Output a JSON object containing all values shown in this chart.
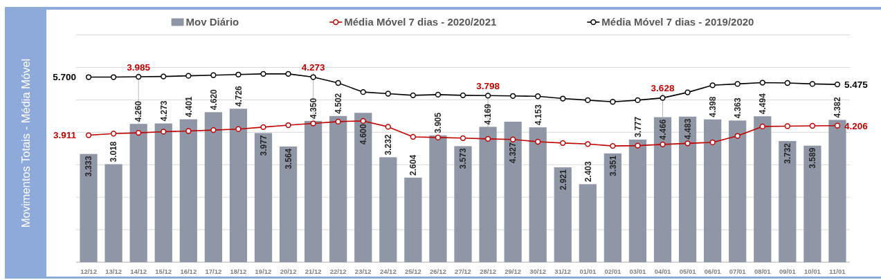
{
  "chart_data": {
    "type": "bar",
    "ylabel": "Movimentos Totais - Média Móvel",
    "categories": [
      "12/12",
      "13/12",
      "14/12",
      "15/12",
      "16/12",
      "17/12",
      "18/12",
      "19/12",
      "20/12",
      "21/12",
      "22/12",
      "23/12",
      "24/12",
      "25/12",
      "26/12",
      "27/12",
      "28/12",
      "29/12",
      "30/12",
      "31/12",
      "01/01",
      "02/01",
      "03/01",
      "04/01",
      "05/01",
      "06/01",
      "07/01",
      "08/01",
      "09/01",
      "10/01",
      "11/01"
    ],
    "series": [
      {
        "name": "Mov Diário",
        "color": "#8f97a7",
        "values": [
          3.333,
          3.018,
          4.26,
          4.273,
          4.401,
          4.62,
          4.726,
          3.977,
          3.564,
          4.35,
          4.502,
          4.6,
          3.232,
          2.604,
          3.905,
          3.573,
          4.169,
          4.327,
          4.153,
          2.921,
          2.403,
          3.351,
          3.777,
          4.466,
          4.483,
          4.398,
          4.363,
          4.494,
          3.732,
          3.589,
          4.382
        ],
        "value_labels": [
          "3.333",
          "3.018",
          "4.260",
          "4.273",
          "4.401",
          "4.620",
          "4.726",
          "3.977",
          "3.564",
          "4.350",
          "4.502",
          "4.600",
          "3.232",
          "2.604",
          "3.905",
          "3.573",
          "4.169",
          "4.327",
          "4.153",
          "2.921",
          "2.403",
          "3.351",
          "3.777",
          "4.466",
          "4.483",
          "4.398",
          "4.363",
          "4.494",
          "3.732",
          "3.589",
          "4.382"
        ]
      },
      {
        "name": "Média Móvel 7 dias - 2020/2021",
        "type": "line",
        "color": "#c00000",
        "values": [
          3.911,
          3.96,
          3.985,
          4.02,
          4.04,
          4.07,
          4.1,
          4.16,
          4.22,
          4.273,
          4.33,
          4.35,
          4.17,
          3.86,
          3.84,
          3.82,
          3.798,
          3.78,
          3.71,
          3.67,
          3.64,
          3.58,
          3.59,
          3.628,
          3.66,
          3.69,
          3.89,
          4.18,
          4.19,
          4.2,
          4.206
        ],
        "value_labels": [
          "3.911",
          null,
          "3.985",
          null,
          null,
          null,
          null,
          null,
          null,
          "4.273",
          null,
          null,
          null,
          null,
          null,
          null,
          "3.798",
          null,
          null,
          null,
          null,
          null,
          null,
          "3.628",
          null,
          null,
          null,
          null,
          null,
          null,
          "4.206"
        ]
      },
      {
        "name": "Média Móvel 7 dias - 2019/2020",
        "type": "line",
        "color": "#000000",
        "values": [
          5.7,
          5.7,
          5.71,
          5.72,
          5.74,
          5.76,
          5.78,
          5.8,
          5.8,
          5.7,
          5.52,
          5.24,
          5.19,
          5.14,
          5.16,
          5.14,
          5.13,
          5.12,
          5.11,
          5.04,
          4.99,
          4.94,
          4.99,
          5.06,
          5.23,
          5.45,
          5.49,
          5.53,
          5.52,
          5.49,
          5.475
        ],
        "value_labels": [
          "5.700",
          null,
          null,
          null,
          null,
          null,
          null,
          null,
          null,
          null,
          null,
          null,
          null,
          null,
          null,
          null,
          null,
          null,
          null,
          null,
          null,
          null,
          null,
          null,
          null,
          null,
          null,
          null,
          null,
          null,
          "5.475"
        ]
      }
    ],
    "ylim": [
      0,
      7
    ],
    "yticks": [
      {
        "value": 0,
        "label": null
      },
      {
        "value": 1,
        "label": null
      },
      {
        "value": 2,
        "label": null
      },
      {
        "value": 3,
        "label": null
      },
      {
        "value": 4,
        "label": null
      },
      {
        "value": 5,
        "label": null
      },
      {
        "value": 6,
        "label": null
      },
      {
        "value": 7,
        "label": null
      }
    ],
    "tick_labels": "x",
    "grid": "y",
    "legend": "top",
    "marker": "circle"
  }
}
